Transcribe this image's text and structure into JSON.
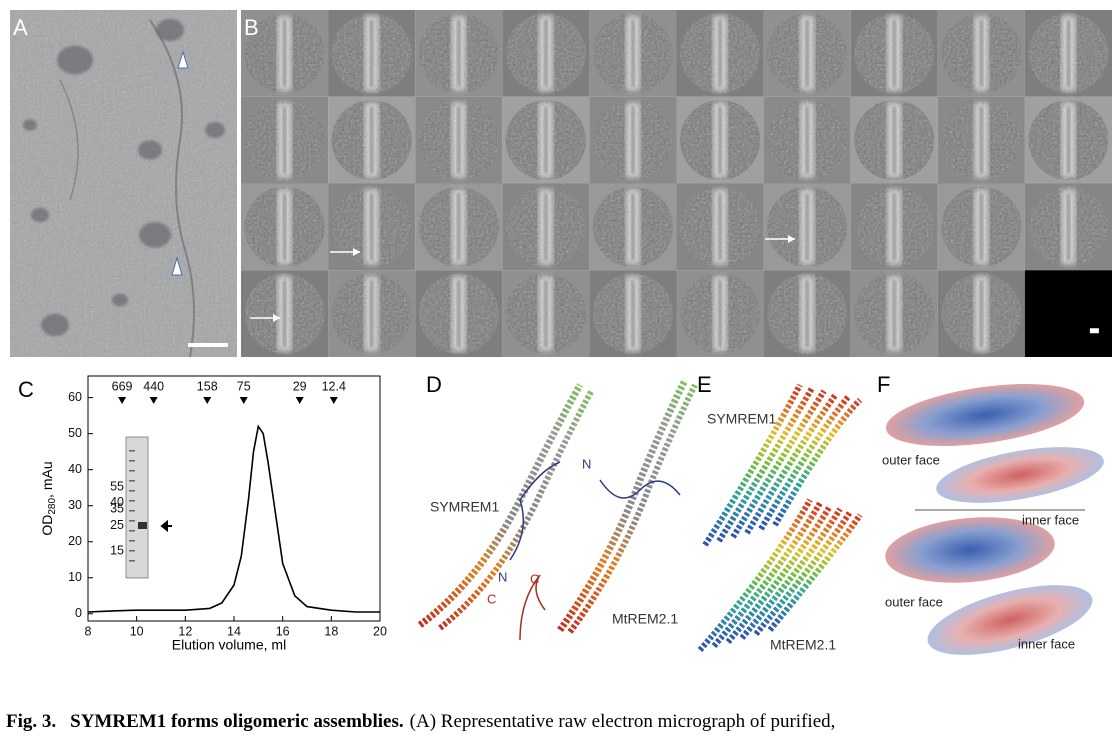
{
  "panels": {
    "A": {
      "label": "A"
    },
    "B": {
      "label": "B"
    },
    "C": {
      "label": "C"
    },
    "D": {
      "label": "D",
      "structure1": {
        "name": "SYMREM1",
        "n": "N",
        "c": "C"
      },
      "structure2": {
        "name": "MtREM2.1",
        "n": "N",
        "c": "C"
      }
    },
    "E": {
      "label": "E",
      "top": "SYMREM1",
      "bottom": "MtREM2.1"
    },
    "F": {
      "label": "F",
      "faces": [
        "outer face",
        "inner face",
        "outer face",
        "inner face"
      ]
    }
  },
  "chart_data": {
    "type": "line",
    "x_label": "Elution volume, ml",
    "y_label": {
      "main": "OD",
      "sub": "280",
      "unit": ", mAu"
    },
    "x": [
      8,
      9,
      10,
      11,
      12,
      13,
      13.5,
      14,
      14.3,
      14.6,
      14.8,
      15,
      15.2,
      15.4,
      15.7,
      16,
      16.5,
      17,
      18,
      19,
      20
    ],
    "values": [
      0.5,
      0.8,
      1,
      1,
      1,
      1.5,
      3,
      8,
      16,
      32,
      45,
      52,
      50,
      42,
      28,
      14,
      5,
      2,
      1,
      0.5,
      0.5
    ],
    "color": "#000000",
    "xlim": [
      8,
      20
    ],
    "ylim": [
      -2,
      66
    ],
    "xticks": [
      8,
      10,
      12,
      14,
      16,
      18,
      20
    ],
    "yticks": [
      0,
      10,
      20,
      30,
      40,
      50,
      60
    ],
    "markers": [
      669,
      440,
      158,
      75,
      29,
      12.4
    ],
    "marker_x": [
      9.4,
      10.7,
      12.9,
      14.4,
      16.7,
      18.1
    ],
    "gel_ladder": [
      55,
      40,
      35,
      25,
      15
    ]
  },
  "caption": {
    "label": "Fig. 3.",
    "title": "SYMREM1 forms oligomeric assemblies.",
    "text": "(A) Representative raw electron micrograph of purified,"
  }
}
